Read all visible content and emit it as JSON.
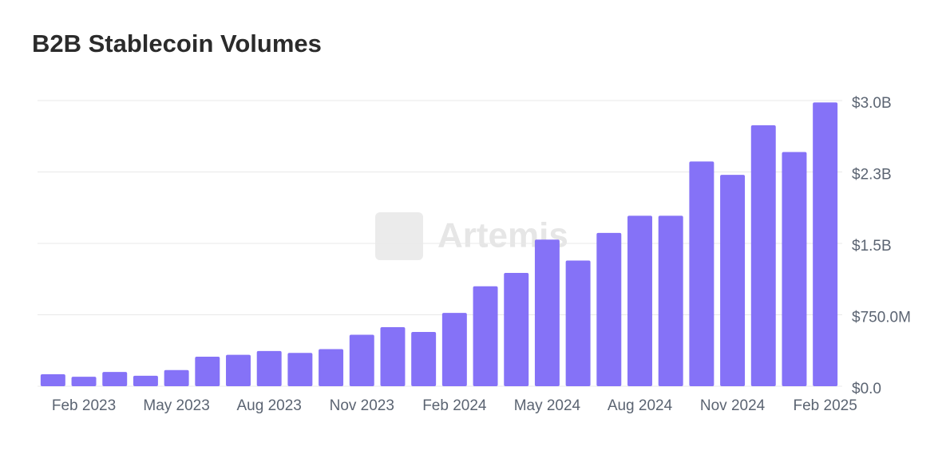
{
  "chart_data": {
    "type": "bar",
    "title": "B2B Stablecoin Volumes",
    "watermark": "Artemis",
    "categories": [
      null,
      "Feb 2023",
      null,
      null,
      "May 2023",
      null,
      null,
      "Aug 2023",
      null,
      null,
      "Nov 2023",
      null,
      null,
      "Feb 2024",
      null,
      null,
      "May 2024",
      null,
      null,
      "Aug 2024",
      null,
      null,
      "Nov 2024",
      null,
      null,
      "Feb 2025"
    ],
    "values": [
      0.126,
      0.1,
      0.15,
      0.11,
      0.17,
      0.31,
      0.33,
      0.37,
      0.35,
      0.39,
      0.54,
      0.62,
      0.57,
      0.77,
      1.05,
      1.19,
      1.54,
      1.32,
      1.61,
      1.79,
      1.79,
      2.36,
      2.22,
      2.74,
      2.46,
      2.98
    ],
    "color": "#8572f7",
    "ylim": [
      0,
      3.0
    ],
    "yticks": [
      {
        "value": 0,
        "label": "$0.0"
      },
      {
        "value": 0.75,
        "label": "$750.0M"
      },
      {
        "value": 1.5,
        "label": "$1.5B"
      },
      {
        "value": 2.25,
        "label": "$2.3B"
      },
      {
        "value": 3.0,
        "label": "$3.0B"
      }
    ],
    "grid": true
  }
}
